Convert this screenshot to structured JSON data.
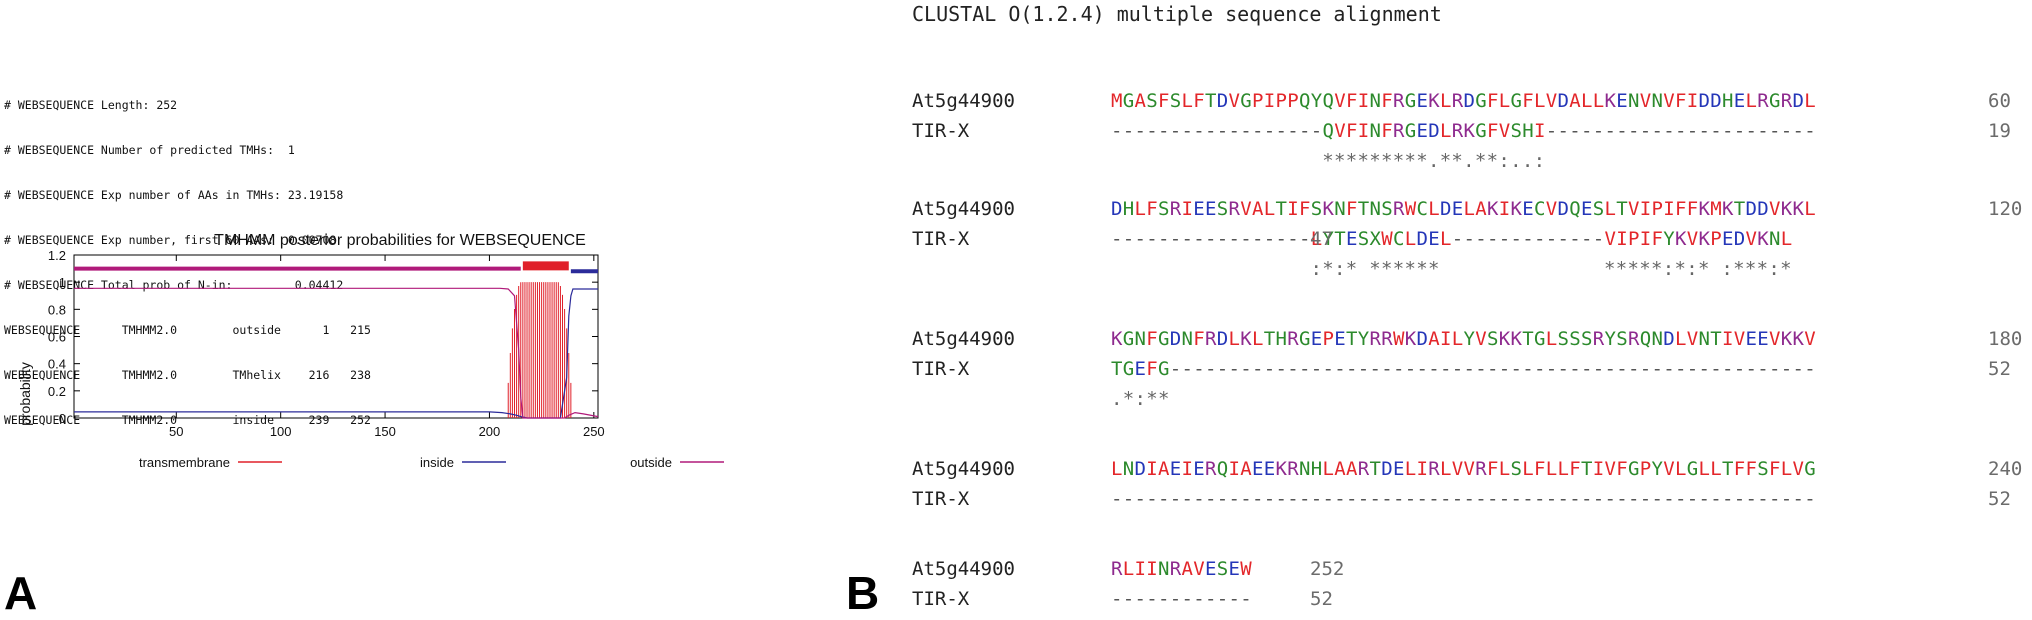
{
  "panel_a": {
    "letter": "A",
    "report_lines": [
      "# WEBSEQUENCE Length: 252",
      "# WEBSEQUENCE Number of predicted TMHs:  1",
      "# WEBSEQUENCE Exp number of AAs in TMHs: 23.19158",
      "# WEBSEQUENCE Exp number, first 60 AAs:  0.00708",
      "# WEBSEQUENCE Total prob of N-in:         0.04412",
      "WEBSEQUENCE      TMHMM2.0        outside      1   215",
      "WEBSEQUENCE      TMHMM2.0        TMhelix    216   238",
      "WEBSEQUENCE      TMHMM2.0        inside     239   252"
    ]
  },
  "chart_data": {
    "type": "line",
    "title": "TMHMM posterior probabilities for WEBSEQUENCE",
    "xlabel": "",
    "ylabel": "probability",
    "xlim": [
      1,
      252
    ],
    "ylim": [
      0,
      1.2
    ],
    "x_ticks": [
      50,
      100,
      150,
      200,
      250
    ],
    "y_ticks": [
      0,
      0.2,
      0.4,
      0.6,
      0.8,
      1,
      1.2
    ],
    "x_tick_labels": [
      "50",
      "100",
      "150",
      "200",
      "250"
    ],
    "y_tick_labels": [
      "0",
      "0.2",
      "0.4",
      "0.6",
      "0.8",
      "1",
      "1.2"
    ],
    "grid": false,
    "legend_position": "bottom",
    "colors": {
      "transmembrane": "#e0202a",
      "inside": "#2b2b9a",
      "outside": "#b01a7a"
    },
    "series": [
      {
        "name": "transmembrane",
        "style": "bars",
        "x_start": 208,
        "x_end": 240,
        "peak": 1.0
      },
      {
        "name": "inside",
        "style": "line",
        "points": [
          [
            1,
            0.045
          ],
          [
            200,
            0.045
          ],
          [
            206,
            0.04
          ],
          [
            210,
            0.03
          ],
          [
            213,
            0.02
          ],
          [
            215,
            0.01
          ],
          [
            218,
            0
          ],
          [
            234,
            0
          ],
          [
            237,
            0.3
          ],
          [
            238,
            0.75
          ],
          [
            239,
            0.9
          ],
          [
            240,
            0.95
          ],
          [
            252,
            0.95
          ]
        ]
      },
      {
        "name": "outside",
        "style": "line",
        "points": [
          [
            1,
            0.955
          ],
          [
            205,
            0.955
          ],
          [
            209,
            0.95
          ],
          [
            212,
            0.9
          ],
          [
            214,
            0.5
          ],
          [
            215,
            0.15
          ],
          [
            216,
            0
          ],
          [
            236,
            0
          ],
          [
            238,
            0.02
          ],
          [
            241,
            0.04
          ],
          [
            245,
            0.03
          ],
          [
            252,
            0.01
          ]
        ]
      }
    ],
    "topology": [
      {
        "label": "outside",
        "start": 1,
        "end": 215
      },
      {
        "label": "TMhelix",
        "start": 216,
        "end": 238
      },
      {
        "label": "inside",
        "start": 239,
        "end": 252
      }
    ]
  },
  "panel_b": {
    "letter": "B",
    "title": "CLUSTAL O(1.2.4) multiple sequence alignment",
    "colors": {
      "red": "#e3262a",
      "blue": "#2436b8",
      "purple": "#8e2a8e",
      "green": "#2c8a2c",
      "gap": "#555555"
    },
    "blocks": [
      {
        "rows": [
          {
            "name": "At5g44900",
            "seq": "MGASFSLFTDVGPIPPQYQVFINFRGEKLRDGFLGFLVDALLKENVNVFIDDHELRGRDL",
            "num": "60"
          },
          {
            "name": "TIR-X",
            "seq": "------------------QVFINFRGEDLRKGFVSHI-----------------------",
            "num": "19"
          }
        ],
        "consensus": "                  *********.**.**:..:"
      },
      {
        "rows": [
          {
            "name": "At5g44900",
            "seq": "DHLFSRIEESRVALTIFSKNFTNSRWCLDELAKIKECVDQESLTVIPIFFKMKTDDVKKL",
            "num": "120"
          },
          {
            "name": "TIR-X",
            "seq": "-----------------LYTESXWCLDEL-------------VIPIFYKVKPEDVKNL",
            "num": "47"
          }
        ],
        "consensus": "                 :*:* ******              *****:*:* :***:*"
      },
      {
        "rows": [
          {
            "name": "At5g44900",
            "seq": "KGNFGDNFRDLKLTHRGEPETYRRWKDAILYVSKKTGLSSSRYSRQNDLVNTIVEEVKKV",
            "num": "180"
          },
          {
            "name": "TIR-X",
            "seq": "TGEFG-------------------------------------------------------",
            "num": "52"
          }
        ],
        "consensus": ".*:**"
      },
      {
        "rows": [
          {
            "name": "At5g44900",
            "seq": "LNDIAEIERQIAEEKRNHLAARTDELIRLVVRFLSLFLLFTIVFGPYVLGLLTFFSFLVG",
            "num": "240"
          },
          {
            "name": "TIR-X",
            "seq": "------------------------------------------------------------",
            "num": "52"
          }
        ],
        "consensus": ""
      },
      {
        "rows": [
          {
            "name": "At5g44900",
            "seq": "RLIINRAVESEW",
            "num": "252"
          },
          {
            "name": "TIR-X",
            "seq": "------------",
            "num": "52"
          }
        ],
        "consensus": ""
      }
    ]
  }
}
